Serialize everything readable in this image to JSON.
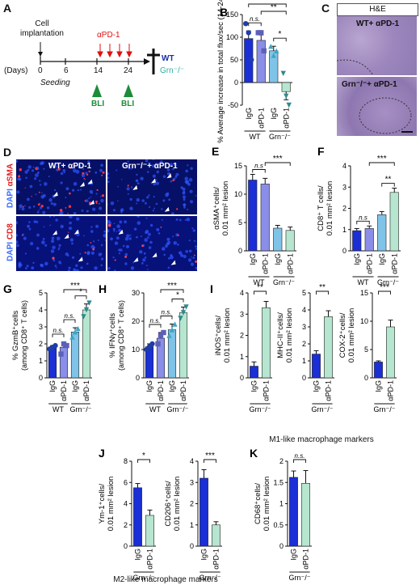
{
  "colors": {
    "wt_igg": "#1a2fd6",
    "wt_apd1": "#8a8ee8",
    "grn_igg": "#7fc3e8",
    "grn_apd1": "#b6e6cf",
    "dot_wt_igg": "#1f3ca8",
    "dot_wt_apd1": "#5d60b8",
    "dot_grn_igg": "#3ea6c5",
    "dot_grn_apd1": "#2f8a8e"
  },
  "panelA": {
    "letter": "A",
    "implant": "Cell implantation",
    "days": "(Days)",
    "t0": "0",
    "t6": "6",
    "t14": "14",
    "t24": "24",
    "seeding": "Seeding",
    "apd1": "αPD-1",
    "bli1": "BLI",
    "bli2": "BLI",
    "wt": "WT",
    "grn": "Grn⁻/⁻"
  },
  "panelC": {
    "letter": "C",
    "header": "H&E",
    "top": "WT+ αPD-1",
    "bottom": "Grn⁻/⁻+ αPD-1"
  },
  "panelD": {
    "letter": "D",
    "top_left": "WT+ αPD-1",
    "top_right": "Grn⁻/⁻+ αPD-1",
    "ch1_dapi": "DAPI",
    "ch1_marker": "αSMA",
    "ch2_dapi": "DAPI",
    "ch2_marker": "CD8"
  },
  "sections": {
    "m1": "M1-like macrophage markers",
    "m2": "M2-like macrophage markers"
  },
  "chart_data": [
    {
      "id": "B",
      "type": "bar",
      "ylabel": "% Average increase in total flux/sec (14-24 days)",
      "ylim": [
        -50,
        150
      ],
      "yticks": [
        -50,
        0,
        50,
        100,
        150
      ],
      "categories": [
        "IgG",
        "αPD-1",
        "IgG",
        "αPD-1"
      ],
      "groups": [
        "WT",
        "Grn⁻/⁻"
      ],
      "values": [
        97,
        93,
        70,
        -20
      ],
      "errors": [
        17,
        12,
        10,
        18
      ],
      "points": [
        [
          130,
          110,
          50
        ],
        [
          110,
          110,
          70
        ],
        [
          80,
          60,
          70
        ],
        [
          20,
          -30,
          -50
        ]
      ],
      "sig": [
        {
          "a": 0,
          "b": 1,
          "t": "n.s."
        },
        {
          "a": 2,
          "b": 3,
          "t": "*"
        },
        {
          "a": 1,
          "b": 3,
          "t": "**"
        },
        {
          "a": 0,
          "b": 3,
          "t": "*"
        }
      ]
    },
    {
      "id": "E",
      "type": "bar",
      "ylabel": "αSMA⁺cells/ 0.01 mm² lesion",
      "ylim": [
        0,
        15
      ],
      "yticks": [
        0,
        5,
        10,
        15
      ],
      "categories": [
        "IgG",
        "αPD-1",
        "IgG",
        "αPD-1"
      ],
      "groups": [
        "WT",
        "Grn⁻/⁻"
      ],
      "values": [
        12.5,
        11.8,
        4,
        3.6
      ],
      "errors": [
        1,
        1,
        0.5,
        0.6
      ],
      "sig": [
        {
          "a": 0,
          "b": 1,
          "t": "n.s"
        },
        {
          "a": 1,
          "b": 3,
          "t": "***"
        }
      ]
    },
    {
      "id": "F",
      "type": "bar",
      "ylabel": "CD8⁺ T cells/ 0.01 mm² lesion",
      "ylim": [
        0,
        4
      ],
      "yticks": [
        0,
        1,
        2,
        3,
        4
      ],
      "categories": [
        "IgG",
        "αPD-1",
        "IgG",
        "αPD-1"
      ],
      "groups": [
        "WT",
        "Grn⁻/⁻"
      ],
      "values": [
        0.95,
        1.05,
        1.7,
        2.75
      ],
      "errors": [
        0.1,
        0.12,
        0.15,
        0.2
      ],
      "sig": [
        {
          "a": 0,
          "b": 1,
          "t": "n.s"
        },
        {
          "a": 2,
          "b": 3,
          "t": "**"
        },
        {
          "a": 1,
          "b": 3,
          "t": "***"
        }
      ]
    },
    {
      "id": "G",
      "type": "bar",
      "ylabel": "% GzmB⁺cells (among CD8⁺ T cells)",
      "ylim": [
        0,
        5
      ],
      "yticks": [
        0,
        1,
        2,
        3,
        4,
        5
      ],
      "categories": [
        "IgG",
        "αPD-1",
        "IgG",
        "αPD-1"
      ],
      "groups": [
        "WT",
        "Grn⁻/⁻"
      ],
      "values": [
        1.8,
        1.8,
        2.7,
        4
      ],
      "errors": [
        0.1,
        0.3,
        0.25,
        0.35
      ],
      "points": [
        [
          1.7,
          1.8,
          1.9
        ],
        [
          1.4,
          2,
          1.9
        ],
        [
          2.4,
          2.7,
          2.9
        ],
        [
          3.6,
          4,
          4.4
        ]
      ],
      "sig": [
        {
          "a": 0,
          "b": 1,
          "t": "n.s."
        },
        {
          "a": 1,
          "b": 2,
          "t": "n.s."
        },
        {
          "a": 1,
          "b": 3,
          "t": "***"
        },
        {
          "a": 2,
          "b": 3,
          "t": "*"
        }
      ]
    },
    {
      "id": "H",
      "type": "bar",
      "ylabel": "% IFNγ⁺cells (among CD8⁺ T cells)",
      "ylim": [
        0,
        30
      ],
      "yticks": [
        0,
        10,
        20,
        30
      ],
      "categories": [
        "IgG",
        "αPD-1",
        "IgG",
        "αPD-1"
      ],
      "groups": [
        "WT",
        "Grn⁻/⁻"
      ],
      "values": [
        11,
        14,
        17,
        23
      ],
      "errors": [
        1,
        2,
        2,
        2
      ],
      "points": [
        [
          10,
          11,
          12
        ],
        [
          12,
          15,
          16
        ],
        [
          15,
          17,
          19
        ],
        [
          21,
          23,
          25
        ]
      ],
      "sig": [
        {
          "a": 0,
          "b": 1,
          "t": "n.s."
        },
        {
          "a": 1,
          "b": 2,
          "t": "n.s."
        },
        {
          "a": 1,
          "b": 3,
          "t": "***"
        },
        {
          "a": 2,
          "b": 3,
          "t": "*"
        }
      ]
    },
    {
      "id": "I1",
      "type": "bar",
      "ylabel": "iNOS⁺cells/ 0.01 mm² lesion",
      "ylim": [
        0,
        4
      ],
      "yticks": [
        0,
        1,
        2,
        3,
        4
      ],
      "categories": [
        "IgG",
        "αPD-1"
      ],
      "groups": [
        "Grn⁻/⁻"
      ],
      "values": [
        0.55,
        3.3
      ],
      "errors": [
        0.2,
        0.3
      ],
      "sig": [
        {
          "a": 0,
          "b": 1,
          "t": "**"
        }
      ]
    },
    {
      "id": "I2",
      "type": "bar",
      "ylabel": "MHC-II⁺cells/ 0.01 mm² lesion",
      "ylim": [
        0,
        5
      ],
      "yticks": [
        0,
        1,
        2,
        3,
        4,
        5
      ],
      "categories": [
        "IgG",
        "αPD-1"
      ],
      "groups": [
        "Grn⁻/⁻"
      ],
      "values": [
        1.4,
        3.6
      ],
      "errors": [
        0.2,
        0.35
      ],
      "sig": [
        {
          "a": 0,
          "b": 1,
          "t": "**"
        }
      ]
    },
    {
      "id": "I3",
      "type": "bar",
      "ylabel": "COX-2⁺cells/ 0.01 mm² lesion",
      "ylim": [
        0,
        15
      ],
      "yticks": [
        0,
        5,
        10,
        15
      ],
      "categories": [
        "IgG",
        "αPD-1"
      ],
      "groups": [
        "Grn⁻/⁻"
      ],
      "values": [
        2.8,
        9
      ],
      "errors": [
        0.2,
        1.2
      ],
      "sig": [
        {
          "a": 0,
          "b": 1,
          "t": "***"
        }
      ]
    },
    {
      "id": "J1",
      "type": "bar",
      "ylabel": "Ym-1⁺cells/ 0.01 mm² lesion",
      "ylim": [
        0,
        8
      ],
      "yticks": [
        0,
        2,
        4,
        6,
        8
      ],
      "categories": [
        "IgG",
        "αPD-1"
      ],
      "groups": [
        "Grn⁻/⁻"
      ],
      "values": [
        5.5,
        2.9
      ],
      "errors": [
        0.4,
        0.5
      ],
      "sig": [
        {
          "a": 0,
          "b": 1,
          "t": "*"
        }
      ]
    },
    {
      "id": "J2",
      "type": "bar",
      "ylabel": "CD206⁺cells/ 0.01 mm² lesion",
      "ylim": [
        0,
        4
      ],
      "yticks": [
        0,
        1,
        2,
        3,
        4
      ],
      "categories": [
        "IgG",
        "αPD-1"
      ],
      "groups": [
        "Grn⁻/⁻"
      ],
      "values": [
        3.2,
        1
      ],
      "errors": [
        0.4,
        0.15
      ],
      "sig": [
        {
          "a": 0,
          "b": 1,
          "t": "***"
        }
      ]
    },
    {
      "id": "K",
      "type": "bar",
      "ylabel": "CD68⁺cells/ 0.01 mm² lesion",
      "ylim": [
        0,
        2
      ],
      "yticks": [
        0,
        0.5,
        1,
        1.5,
        2
      ],
      "categories": [
        "IgG",
        "αPD-1"
      ],
      "groups": [
        "Grn⁻/⁻"
      ],
      "values": [
        1.62,
        1.48
      ],
      "errors": [
        0.15,
        0.3
      ],
      "sig": [
        {
          "a": 0,
          "b": 1,
          "t": "n.s."
        }
      ]
    }
  ]
}
